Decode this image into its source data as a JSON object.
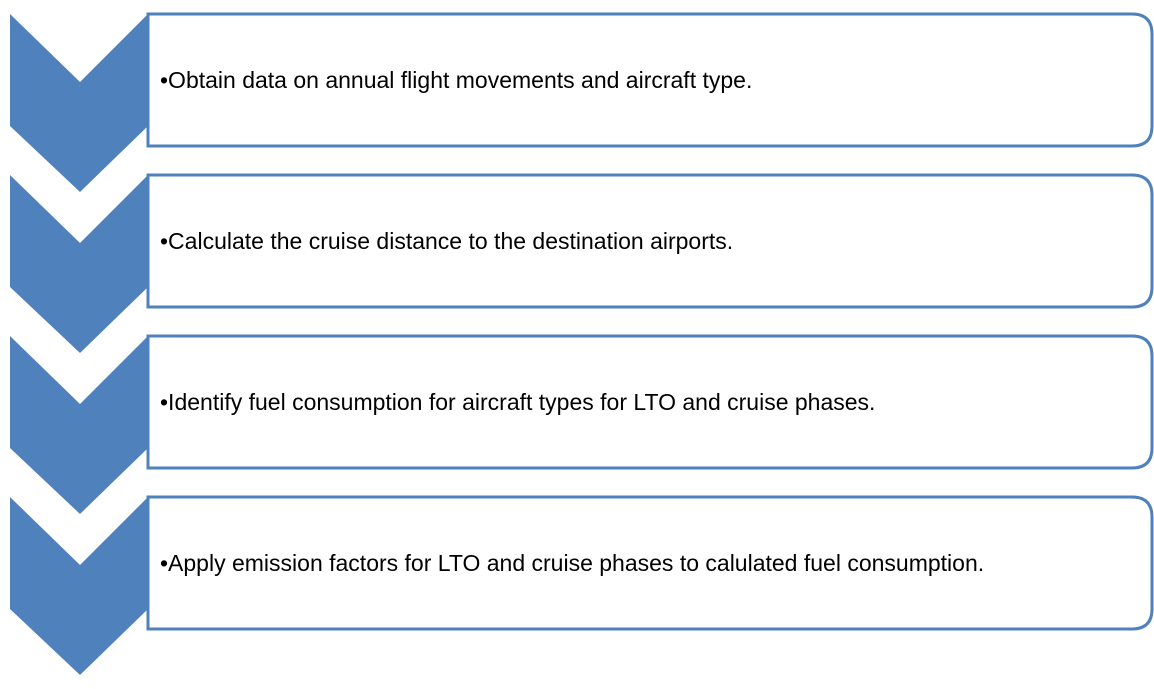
{
  "steps": [
    {
      "text": "•Obtain data on annual flight movements and aircraft type."
    },
    {
      "text": "•Calculate the cruise distance to the destination airports."
    },
    {
      "text": "•Identify fuel consumption for aircraft types for LTO and cruise phases."
    },
    {
      "text": "•Apply emission factors for LTO and cruise phases to calulated fuel consumption."
    }
  ]
}
